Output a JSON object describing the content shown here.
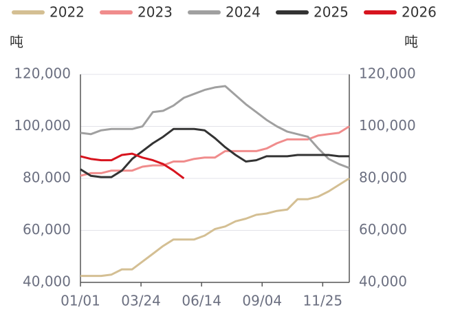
{
  "chart_data": {
    "type": "line",
    "y_unit": "吨",
    "y2_unit": "吨",
    "x": [
      0,
      14,
      28,
      42,
      56,
      70,
      84,
      98,
      112,
      126,
      140,
      154,
      168,
      182,
      196,
      210,
      224,
      238,
      252,
      266,
      280,
      294,
      308,
      322,
      336,
      350,
      364
    ],
    "xlim": [
      0,
      364
    ],
    "xticks": [
      {
        "value": 0,
        "label": "01/01"
      },
      {
        "value": 82,
        "label": "03/24"
      },
      {
        "value": 164,
        "label": "06/14"
      },
      {
        "value": 246,
        "label": "09/04"
      },
      {
        "value": 328,
        "label": "11/25"
      }
    ],
    "ylim": [
      40000,
      120000
    ],
    "yticks": [
      {
        "value": 40000,
        "label": "40,000"
      },
      {
        "value": 60000,
        "label": "60,000"
      },
      {
        "value": 80000,
        "label": "80,000"
      },
      {
        "value": 100000,
        "label": "100,000"
      },
      {
        "value": 120000,
        "label": "120,000"
      }
    ],
    "y2lim": [
      40000,
      120000
    ],
    "y2ticks": [
      {
        "value": 40000,
        "label": "40,000"
      },
      {
        "value": 60000,
        "label": "60,000"
      },
      {
        "value": 80000,
        "label": "80,000"
      },
      {
        "value": 100000,
        "label": "100,000"
      },
      {
        "value": 120000,
        "label": "120,000"
      }
    ],
    "grid": true,
    "legend": "top",
    "series": [
      {
        "name": "2022",
        "color": "#d4bf93",
        "values": [
          42500,
          42500,
          42500,
          43000,
          45000,
          45000,
          48000,
          51000,
          54000,
          56500,
          56500,
          56500,
          58000,
          60500,
          61500,
          63500,
          64500,
          66000,
          66500,
          67500,
          68000,
          72000,
          72000,
          73000,
          75000,
          77500,
          80000
        ]
      },
      {
        "name": "2023",
        "color": "#f08c8c",
        "values": [
          81000,
          82000,
          82000,
          83000,
          83000,
          83000,
          84500,
          85000,
          85000,
          86500,
          86500,
          87500,
          88000,
          88000,
          90500,
          90500,
          90500,
          90500,
          91500,
          93500,
          95000,
          95000,
          95000,
          96500,
          97000,
          97500,
          100000
        ]
      },
      {
        "name": "2024",
        "color": "#a0a0a0",
        "values": [
          97500,
          97000,
          98500,
          99000,
          99000,
          99000,
          100000,
          105500,
          106000,
          108000,
          111000,
          112500,
          114000,
          115000,
          115500,
          112000,
          108500,
          105500,
          102500,
          100000,
          98000,
          97000,
          96000,
          91500,
          87500,
          85500,
          84000
        ]
      },
      {
        "name": "2025",
        "color": "#333333",
        "values": [
          83500,
          81000,
          80500,
          80500,
          83000,
          87500,
          90500,
          93500,
          96000,
          99000,
          99000,
          99000,
          98500,
          95500,
          92000,
          89000,
          86500,
          87000,
          88500,
          88500,
          88500,
          89000,
          89000,
          89000,
          89000,
          88500,
          88500
        ]
      },
      {
        "name": "2026",
        "color": "#d7141e",
        "values": [
          88500,
          87500,
          87000,
          87000,
          89000,
          89500,
          88000,
          87000,
          85500,
          83000,
          80000,
          null,
          null,
          null,
          null,
          null,
          null,
          null,
          null,
          null,
          null,
          null,
          null,
          null,
          null,
          null,
          null
        ]
      }
    ]
  }
}
